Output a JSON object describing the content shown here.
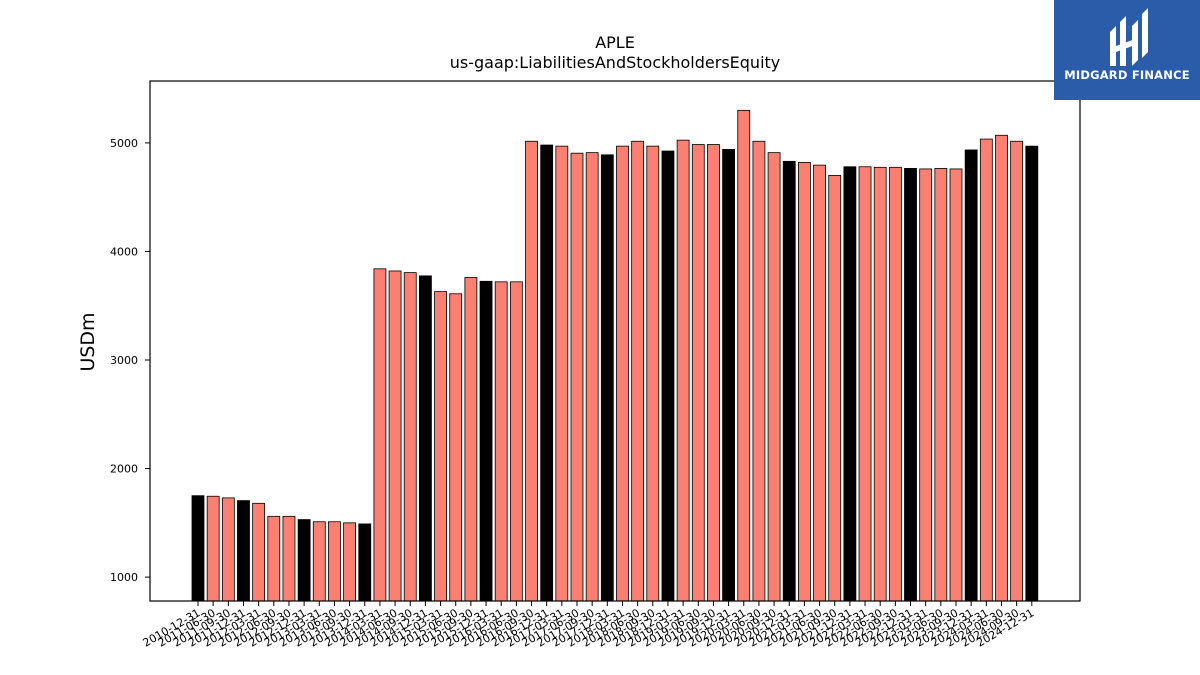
{
  "chart_data": {
    "type": "bar",
    "title": "APLE",
    "subtitle": "us-gaap:LiabilitiesAndStockholdersEquity",
    "ylabel": "USDm",
    "xlabel": "",
    "ylim": [
      780,
      5570
    ],
    "yticks": [
      1000,
      2000,
      3000,
      4000,
      5000
    ],
    "grid": false,
    "colors": {
      "annual": "#000000",
      "quarterly": "#fa8072",
      "edge": "#000000"
    },
    "categories": [
      "2010-12-31",
      "2011-06-30",
      "2011-09-30",
      "2011-12-31",
      "2012-03-31",
      "2012-06-30",
      "2012-09-30",
      "2012-12-31",
      "2013-03-31",
      "2013-06-30",
      "2013-09-30",
      "2013-12-31",
      "2014-03-31",
      "2014-06-30",
      "2014-09-30",
      "2014-12-31",
      "2015-03-31",
      "2015-06-30",
      "2015-09-30",
      "2015-12-31",
      "2016-03-31",
      "2016-06-30",
      "2016-09-30",
      "2016-12-31",
      "2017-03-31",
      "2017-06-30",
      "2017-09-30",
      "2017-12-31",
      "2018-03-31",
      "2018-06-30",
      "2018-09-30",
      "2018-12-31",
      "2019-03-31",
      "2019-06-30",
      "2019-09-30",
      "2019-12-31",
      "2020-03-31",
      "2020-06-30",
      "2020-09-30",
      "2020-12-31",
      "2021-03-31",
      "2021-06-30",
      "2021-09-30",
      "2021-12-31",
      "2022-03-31",
      "2022-06-30",
      "2022-09-30",
      "2022-12-31",
      "2023-03-31",
      "2023-06-30",
      "2023-09-30",
      "2023-12-31",
      "2024-03-31",
      "2024-06-30",
      "2024-09-30",
      "2024-12-31"
    ],
    "values": [
      1750,
      1745,
      1730,
      1705,
      1680,
      1560,
      1560,
      1530,
      1510,
      1510,
      1500,
      1490,
      3840,
      3820,
      3805,
      3775,
      3630,
      3610,
      3760,
      3725,
      3720,
      3720,
      5015,
      4980,
      4970,
      4905,
      4910,
      4890,
      4970,
      5015,
      4970,
      4925,
      5025,
      4985,
      4985,
      4940,
      5300,
      5015,
      4910,
      4830,
      4820,
      4795,
      4700,
      4780,
      4780,
      4775,
      4775,
      4765,
      4760,
      4765,
      4760,
      4935,
      5035,
      5070,
      5015,
      4970
    ],
    "annual": [
      true,
      false,
      false,
      true,
      false,
      false,
      false,
      true,
      false,
      false,
      false,
      true,
      false,
      false,
      false,
      true,
      false,
      false,
      false,
      true,
      false,
      false,
      false,
      true,
      false,
      false,
      false,
      true,
      false,
      false,
      false,
      true,
      false,
      false,
      false,
      true,
      false,
      false,
      false,
      true,
      false,
      false,
      false,
      true,
      false,
      false,
      false,
      true,
      false,
      false,
      false,
      true,
      false,
      false,
      false,
      true
    ]
  },
  "logo": {
    "text": "MIDGARD FINANCE",
    "color": "#2a5caa"
  }
}
